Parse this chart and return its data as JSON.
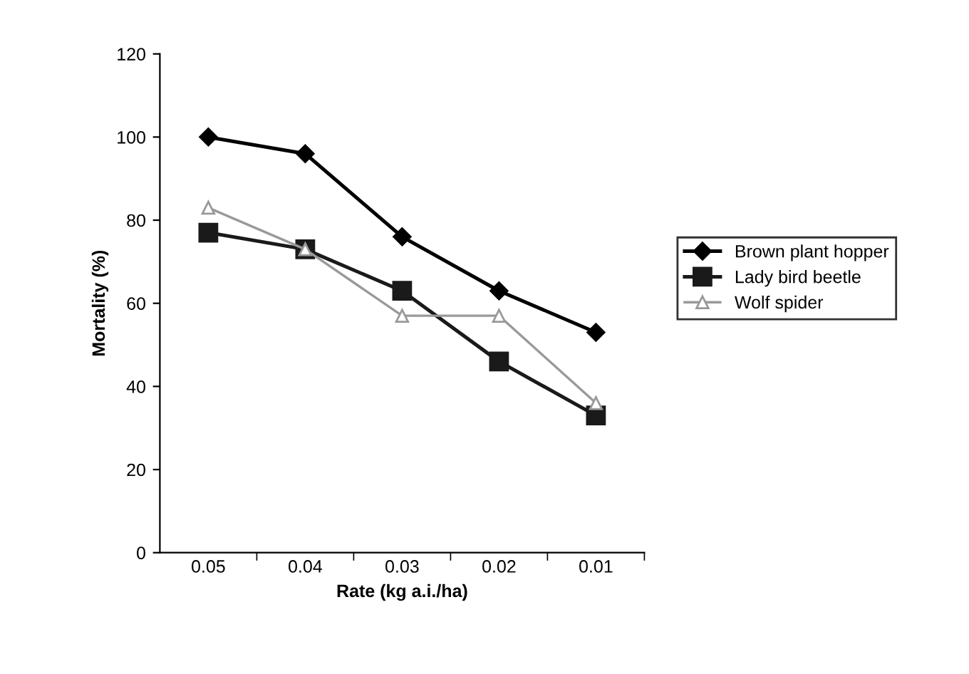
{
  "chart_data": {
    "type": "line",
    "xlabel": "Rate (kg a.i./ha)",
    "ylabel": "Mortality (%)",
    "categories": [
      "0.05",
      "0.04",
      "0.03",
      "0.02",
      "0.01"
    ],
    "series": [
      {
        "name": "Brown plant hopper",
        "color": "#000000",
        "marker": "diamond",
        "values": [
          100,
          96,
          76,
          63,
          53
        ]
      },
      {
        "name": "Lady bird beetle",
        "color": "#1a1a1a",
        "marker": "square",
        "values": [
          77,
          73,
          63,
          46,
          33
        ]
      },
      {
        "name": "Wolf spider",
        "color": "#999999",
        "marker": "triangle",
        "values": [
          83,
          73,
          57,
          57,
          36
        ]
      }
    ],
    "ylim": [
      0,
      120
    ],
    "yticks": [
      0,
      20,
      40,
      60,
      80,
      100,
      120
    ],
    "grid": false,
    "legend": "right",
    "line_style": "solid"
  }
}
